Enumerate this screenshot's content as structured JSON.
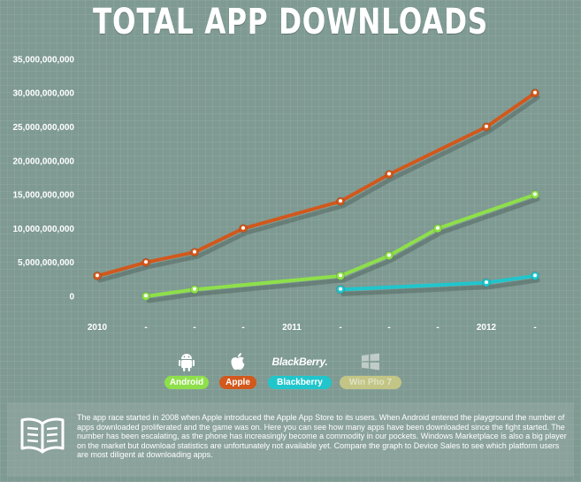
{
  "title": "TOTAL APP DOWNLOADS",
  "chart_data": {
    "type": "line",
    "x": [
      "2010",
      "-",
      "-",
      "-",
      "2011",
      "-",
      "-",
      "-",
      "2012",
      "-"
    ],
    "ylim": [
      0,
      35000000000
    ],
    "yticks": [
      {
        "value": 35000000000,
        "label": "35,000,000,000"
      },
      {
        "value": 30000000000,
        "label": "30,000,000,000"
      },
      {
        "value": 25000000000,
        "label": "25,000,000,000"
      },
      {
        "value": 20000000000,
        "label": "20,000,000,000"
      },
      {
        "value": 15000000000,
        "label": "15,000,000,000"
      },
      {
        "value": 10000000000,
        "label": "10,000,000,000"
      },
      {
        "value": 5000000000,
        "label": "5,000,000,000"
      },
      {
        "value": 0,
        "label": "0"
      }
    ],
    "series": [
      {
        "name": "Android",
        "color": "#8ee04a",
        "points": [
          [
            1,
            0
          ],
          [
            2,
            1000000000
          ],
          [
            5,
            3000000000
          ],
          [
            6,
            6000000000
          ],
          [
            7,
            10000000000
          ],
          [
            9,
            15000000000
          ]
        ]
      },
      {
        "name": "Apple",
        "color": "#d2581c",
        "points": [
          [
            0,
            3000000000
          ],
          [
            1,
            5000000000
          ],
          [
            2,
            6500000000
          ],
          [
            3,
            10000000000
          ],
          [
            5,
            14000000000
          ],
          [
            6,
            18000000000
          ],
          [
            8,
            25000000000
          ],
          [
            9,
            30000000000
          ]
        ]
      },
      {
        "name": "Blackberry",
        "color": "#20c6cc",
        "points": [
          [
            5,
            1000000000
          ],
          [
            8,
            2000000000
          ],
          [
            9,
            3000000000
          ]
        ]
      }
    ]
  },
  "legend": [
    {
      "name": "Android",
      "icon": "android-icon",
      "color": "#8ee04a"
    },
    {
      "name": "Apple",
      "icon": "apple-icon",
      "color": "#d2581c"
    },
    {
      "name": "Blackberry",
      "icon": "blackberry-logo",
      "logo_text": "BlackBerry.",
      "color": "#20c6cc"
    },
    {
      "name": "Win Pho 7",
      "icon": "windows-icon",
      "color": "#c2c585"
    }
  ],
  "info": {
    "icon": "book-icon",
    "text": "The app race started in 2008 when Apple introduced the Apple App Store to its users. When Android entered the playground the number of apps downloaded proliferated and the game was on. Here you can see how many apps have been downloaded since the fight started. The number has been escalating, as the phone has increasingly become a commodity in our pockets. Windows Marketplace is also a big player on the market but download statistics are unfortunately not available yet. Compare the graph to Device Sales to see which platform users are most diligent at downloading apps."
  }
}
